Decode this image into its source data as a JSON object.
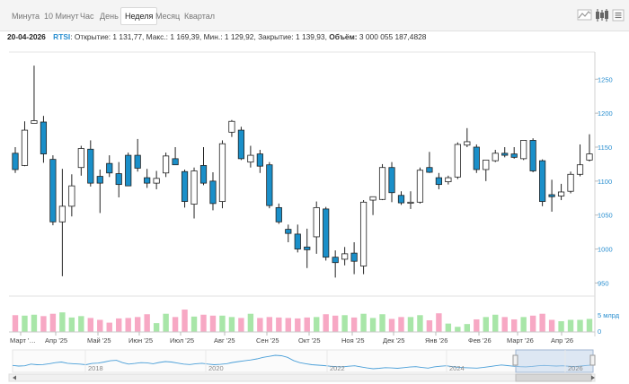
{
  "toolbar": {
    "tabs": [
      "Минута",
      "10 Минут",
      "Час",
      "День",
      "Неделя",
      "Месяц",
      "Квартал"
    ],
    "active_tab": "Неделя",
    "icons": [
      "area-chart-icon",
      "candlestick-chart-icon",
      "menu-icon"
    ]
  },
  "info": {
    "date": "20-04-2026",
    "ticker": "RTSI",
    "rest": ": Открытие: 1 131,77, Макс.: 1 169,39, Мин.: 1 129,92, Закрытие: 1 139,93,",
    "volume_label": "Объём:",
    "volume_value": "3 000 055 187,4828"
  },
  "colors": {
    "bearish": "#1a8fc9",
    "bullish": "#ffffff",
    "volume_up": "#a8e6a8",
    "volume_down": "#f7a8c4",
    "axis_text": "#2a8fd0",
    "navigator_line": "#4a9fd8"
  },
  "chart_data": {
    "type": "candlestick",
    "ylim": [
      940,
      1290
    ],
    "y_ticks": [
      950,
      1000,
      1050,
      1100,
      1150,
      1200,
      1250
    ],
    "x_labels": [
      "Март '…",
      "Апр '25",
      "Май '25",
      "Июн '25",
      "Июл '25",
      "Авг '25",
      "Сен '25",
      "Окт '25",
      "Ноя '25",
      "Дек '25",
      "Янв '26",
      "Фев '26",
      "Март '26",
      "Апр '26"
    ],
    "candles": [
      {
        "o": 1141,
        "h": 1150,
        "l": 1112,
        "c": 1117
      },
      {
        "o": 1123,
        "h": 1188,
        "l": 1122,
        "c": 1175
      },
      {
        "o": 1185,
        "h": 1270,
        "l": 1185,
        "c": 1189
      },
      {
        "o": 1187,
        "h": 1196,
        "l": 1127,
        "c": 1140
      },
      {
        "o": 1132,
        "h": 1138,
        "l": 1035,
        "c": 1040
      },
      {
        "o": 1040,
        "h": 1118,
        "l": 960,
        "c": 1063
      },
      {
        "o": 1063,
        "h": 1110,
        "l": 1048,
        "c": 1093
      },
      {
        "o": 1120,
        "h": 1152,
        "l": 1108,
        "c": 1148
      },
      {
        "o": 1147,
        "h": 1160,
        "l": 1092,
        "c": 1097
      },
      {
        "o": 1107,
        "h": 1117,
        "l": 1053,
        "c": 1097
      },
      {
        "o": 1126,
        "h": 1138,
        "l": 1106,
        "c": 1112
      },
      {
        "o": 1111,
        "h": 1128,
        "l": 1076,
        "c": 1095
      },
      {
        "o": 1138,
        "h": 1142,
        "l": 1093,
        "c": 1093
      },
      {
        "o": 1138,
        "h": 1162,
        "l": 1114,
        "c": 1119
      },
      {
        "o": 1105,
        "h": 1118,
        "l": 1090,
        "c": 1097
      },
      {
        "o": 1097,
        "h": 1115,
        "l": 1088,
        "c": 1104
      },
      {
        "o": 1112,
        "h": 1142,
        "l": 1106,
        "c": 1137
      },
      {
        "o": 1133,
        "h": 1150,
        "l": 1125,
        "c": 1124
      },
      {
        "o": 1114,
        "h": 1117,
        "l": 1061,
        "c": 1070
      },
      {
        "o": 1066,
        "h": 1120,
        "l": 1045,
        "c": 1115
      },
      {
        "o": 1123,
        "h": 1150,
        "l": 1094,
        "c": 1097
      },
      {
        "o": 1100,
        "h": 1113,
        "l": 1057,
        "c": 1067
      },
      {
        "o": 1070,
        "h": 1160,
        "l": 1060,
        "c": 1155
      },
      {
        "o": 1172,
        "h": 1190,
        "l": 1165,
        "c": 1188
      },
      {
        "o": 1175,
        "h": 1180,
        "l": 1131,
        "c": 1133
      },
      {
        "o": 1128,
        "h": 1152,
        "l": 1120,
        "c": 1138
      },
      {
        "o": 1140,
        "h": 1146,
        "l": 1112,
        "c": 1122
      },
      {
        "o": 1124,
        "h": 1128,
        "l": 1060,
        "c": 1064
      },
      {
        "o": 1061,
        "h": 1067,
        "l": 1037,
        "c": 1040
      },
      {
        "o": 1029,
        "h": 1036,
        "l": 1010,
        "c": 1023
      },
      {
        "o": 1022,
        "h": 1036,
        "l": 995,
        "c": 1000
      },
      {
        "o": 1003,
        "h": 1030,
        "l": 972,
        "c": 999
      },
      {
        "o": 1018,
        "h": 1070,
        "l": 993,
        "c": 1061
      },
      {
        "o": 1059,
        "h": 1062,
        "l": 983,
        "c": 988
      },
      {
        "o": 988,
        "h": 998,
        "l": 958,
        "c": 980
      },
      {
        "o": 985,
        "h": 1003,
        "l": 976,
        "c": 993
      },
      {
        "o": 994,
        "h": 1010,
        "l": 963,
        "c": 982
      },
      {
        "o": 975,
        "h": 1072,
        "l": 963,
        "c": 1069
      },
      {
        "o": 1072,
        "h": 1076,
        "l": 1050,
        "c": 1077
      },
      {
        "o": 1073,
        "h": 1125,
        "l": 1072,
        "c": 1120
      },
      {
        "o": 1120,
        "h": 1128,
        "l": 1069,
        "c": 1083
      },
      {
        "o": 1079,
        "h": 1085,
        "l": 1065,
        "c": 1068
      },
      {
        "o": 1068,
        "h": 1085,
        "l": 1059,
        "c": 1069
      },
      {
        "o": 1069,
        "h": 1120,
        "l": 1067,
        "c": 1116
      },
      {
        "o": 1120,
        "h": 1143,
        "l": 1112,
        "c": 1113
      },
      {
        "o": 1105,
        "h": 1112,
        "l": 1088,
        "c": 1095
      },
      {
        "o": 1099,
        "h": 1108,
        "l": 1095,
        "c": 1105
      },
      {
        "o": 1106,
        "h": 1157,
        "l": 1103,
        "c": 1154
      },
      {
        "o": 1153,
        "h": 1178,
        "l": 1150,
        "c": 1158
      },
      {
        "o": 1150,
        "h": 1154,
        "l": 1112,
        "c": 1117
      },
      {
        "o": 1117,
        "h": 1131,
        "l": 1100,
        "c": 1131
      },
      {
        "o": 1130,
        "h": 1146,
        "l": 1128,
        "c": 1141
      },
      {
        "o": 1141,
        "h": 1150,
        "l": 1135,
        "c": 1138
      },
      {
        "o": 1140,
        "h": 1150,
        "l": 1133,
        "c": 1135
      },
      {
        "o": 1133,
        "h": 1158,
        "l": 1131,
        "c": 1160
      },
      {
        "o": 1160,
        "h": 1163,
        "l": 1113,
        "c": 1115
      },
      {
        "o": 1130,
        "h": 1132,
        "l": 1063,
        "c": 1070
      },
      {
        "o": 1080,
        "h": 1102,
        "l": 1055,
        "c": 1077
      },
      {
        "o": 1078,
        "h": 1096,
        "l": 1072,
        "c": 1084
      },
      {
        "o": 1085,
        "h": 1114,
        "l": 1082,
        "c": 1110
      },
      {
        "o": 1110,
        "h": 1154,
        "l": 1107,
        "c": 1124
      },
      {
        "o": 1131,
        "h": 1169,
        "l": 1129,
        "c": 1140
      }
    ],
    "volume_axis_label": "5 млрд",
    "volume_zero_label": "0",
    "volume": [
      0.72,
      0.7,
      0.74,
      0.68,
      0.78,
      0.84,
      0.62,
      0.68,
      0.6,
      0.52,
      0.4,
      0.58,
      0.6,
      0.64,
      0.76,
      0.38,
      0.78,
      0.64,
      0.96,
      0.66,
      0.74,
      0.7,
      0.7,
      0.64,
      0.6,
      0.78,
      0.6,
      0.64,
      0.62,
      0.6,
      0.58,
      0.62,
      0.64,
      0.76,
      0.7,
      0.72,
      0.62,
      0.78,
      0.6,
      0.76,
      0.56,
      0.64,
      0.64,
      0.72,
      0.5,
      0.8,
      0.36,
      0.22,
      0.34,
      0.54,
      0.64,
      0.74,
      0.64,
      0.54,
      0.64,
      0.7,
      0.78,
      0.52,
      0.46,
      0.52,
      0.52,
      0.56
    ],
    "navigator": {
      "years": [
        "2018",
        "2020",
        "2022",
        "2024",
        "2026"
      ],
      "series": [
        1120,
        1090,
        1100,
        1180,
        1150,
        1160,
        1200,
        1250,
        1280,
        1220,
        1200,
        1180,
        1150,
        1210,
        1230,
        1280,
        1340,
        1360,
        1250,
        1180,
        1210,
        1250,
        1240,
        1200,
        1260,
        1300,
        1280,
        1230,
        1180,
        1160,
        1200,
        1220,
        1180,
        1150,
        1170,
        1200,
        1260,
        1300,
        1340,
        1380,
        1430,
        1500,
        1550,
        1600,
        1580,
        1500,
        1350,
        1250,
        1200,
        1150,
        1130,
        1110,
        1080,
        1060,
        1050,
        1080,
        1100,
        1050,
        1000,
        960,
        980,
        1010,
        1000,
        980,
        1010,
        1040,
        1060,
        1020,
        990,
        1050,
        1080,
        1100,
        1060,
        1030,
        1010,
        1000,
        990,
        1020,
        1060,
        1100,
        1140,
        1110,
        1080,
        1060,
        1050,
        1070,
        1100,
        1120,
        1100,
        1090,
        1100,
        1080,
        1060,
        1090,
        1120,
        1140
      ]
    }
  }
}
